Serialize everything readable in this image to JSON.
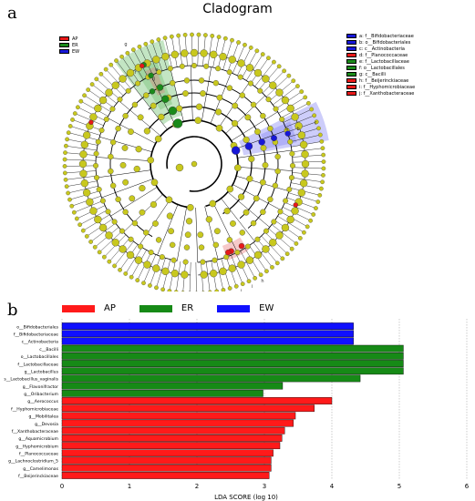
{
  "panel_a_label": "a",
  "panel_b_label": "b",
  "cladogram": {
    "title": "Cladogram",
    "groups": [
      {
        "name": "AP",
        "color": "#e81919"
      },
      {
        "name": "ER",
        "color": "#1a8a1a"
      },
      {
        "name": "EW",
        "color": "#1717d8"
      }
    ],
    "taxa": [
      {
        "label": "a: f__Bifidobacteriaceae",
        "color": "#1717d8"
      },
      {
        "label": "b: o__Bifidobacteriales",
        "color": "#1717d8"
      },
      {
        "label": "c: c__Actinobacteria",
        "color": "#1717d8"
      },
      {
        "label": "d: f__Planococcaceae",
        "color": "#e81919"
      },
      {
        "label": "e: f__Lactobacillaceae",
        "color": "#1a8a1a"
      },
      {
        "label": "f: o__Lactobacillales",
        "color": "#1a8a1a"
      },
      {
        "label": "g: c__Bacilli",
        "color": "#1a8a1a"
      },
      {
        "label": "h: f__Beijerinckiaceae",
        "color": "#e81919"
      },
      {
        "label": "i: f__Hyphomicrobiaceae",
        "color": "#e81919"
      },
      {
        "label": "j: f__Xanthobacteraceae",
        "color": "#e81919"
      }
    ],
    "node_color": "#c8c81e",
    "sector_labels": [
      "g",
      "f",
      "e",
      "d",
      "c",
      "b",
      "a",
      "h",
      "i",
      "j"
    ]
  },
  "chart_data": {
    "type": "bar",
    "orientation": "horizontal",
    "xlabel": "LDA SCORE (log 10)",
    "xlim": [
      0,
      6
    ],
    "xticks": [
      "0",
      "1",
      "2",
      "3",
      "4",
      "5",
      "6"
    ],
    "grid": "vertical dotted",
    "legend_placement": "top",
    "series": [
      {
        "name": "AP",
        "color": "#ff1a1a"
      },
      {
        "name": "ER",
        "color": "#168a16"
      },
      {
        "name": "EW",
        "color": "#1010ff"
      }
    ],
    "bars": [
      {
        "label": "o__Bifidobacteriales",
        "value": 4.32,
        "group": "EW"
      },
      {
        "label": "f__Bifidobacteriaceae",
        "value": 4.32,
        "group": "EW"
      },
      {
        "label": "c__Actinobacteria",
        "value": 4.32,
        "group": "EW"
      },
      {
        "label": "c__Bacilli",
        "value": 5.06,
        "group": "ER"
      },
      {
        "label": "o__Lactobacillales",
        "value": 5.06,
        "group": "ER"
      },
      {
        "label": "f__Lactobacillaceae",
        "value": 5.06,
        "group": "ER"
      },
      {
        "label": "g__Lactobacillus",
        "value": 5.06,
        "group": "ER"
      },
      {
        "label": "s__Lactobacillus_vaginalis",
        "value": 4.42,
        "group": "ER"
      },
      {
        "label": "g__Flavonifractor",
        "value": 3.27,
        "group": "ER"
      },
      {
        "label": "g__Oribacterium",
        "value": 2.98,
        "group": "ER"
      },
      {
        "label": "g__Aerococcus",
        "value": 4.0,
        "group": "AP"
      },
      {
        "label": "f__Hyphomicrobiaceae",
        "value": 3.74,
        "group": "AP"
      },
      {
        "label": "g__Mobilitalea",
        "value": 3.46,
        "group": "AP"
      },
      {
        "label": "g__Devosia",
        "value": 3.43,
        "group": "AP"
      },
      {
        "label": "f__Xanthobacteraceae",
        "value": 3.3,
        "group": "AP"
      },
      {
        "label": "g__Aquamicrobium",
        "value": 3.26,
        "group": "AP"
      },
      {
        "label": "g__Hyphomicrobium",
        "value": 3.23,
        "group": "AP"
      },
      {
        "label": "f__Planococcaceae",
        "value": 3.13,
        "group": "AP"
      },
      {
        "label": "g__Lachnoclostridium_5",
        "value": 3.1,
        "group": "AP"
      },
      {
        "label": "g__Camelimonas",
        "value": 3.1,
        "group": "AP"
      },
      {
        "label": "f__Beijerinckiaceae",
        "value": 3.07,
        "group": "AP"
      }
    ]
  }
}
